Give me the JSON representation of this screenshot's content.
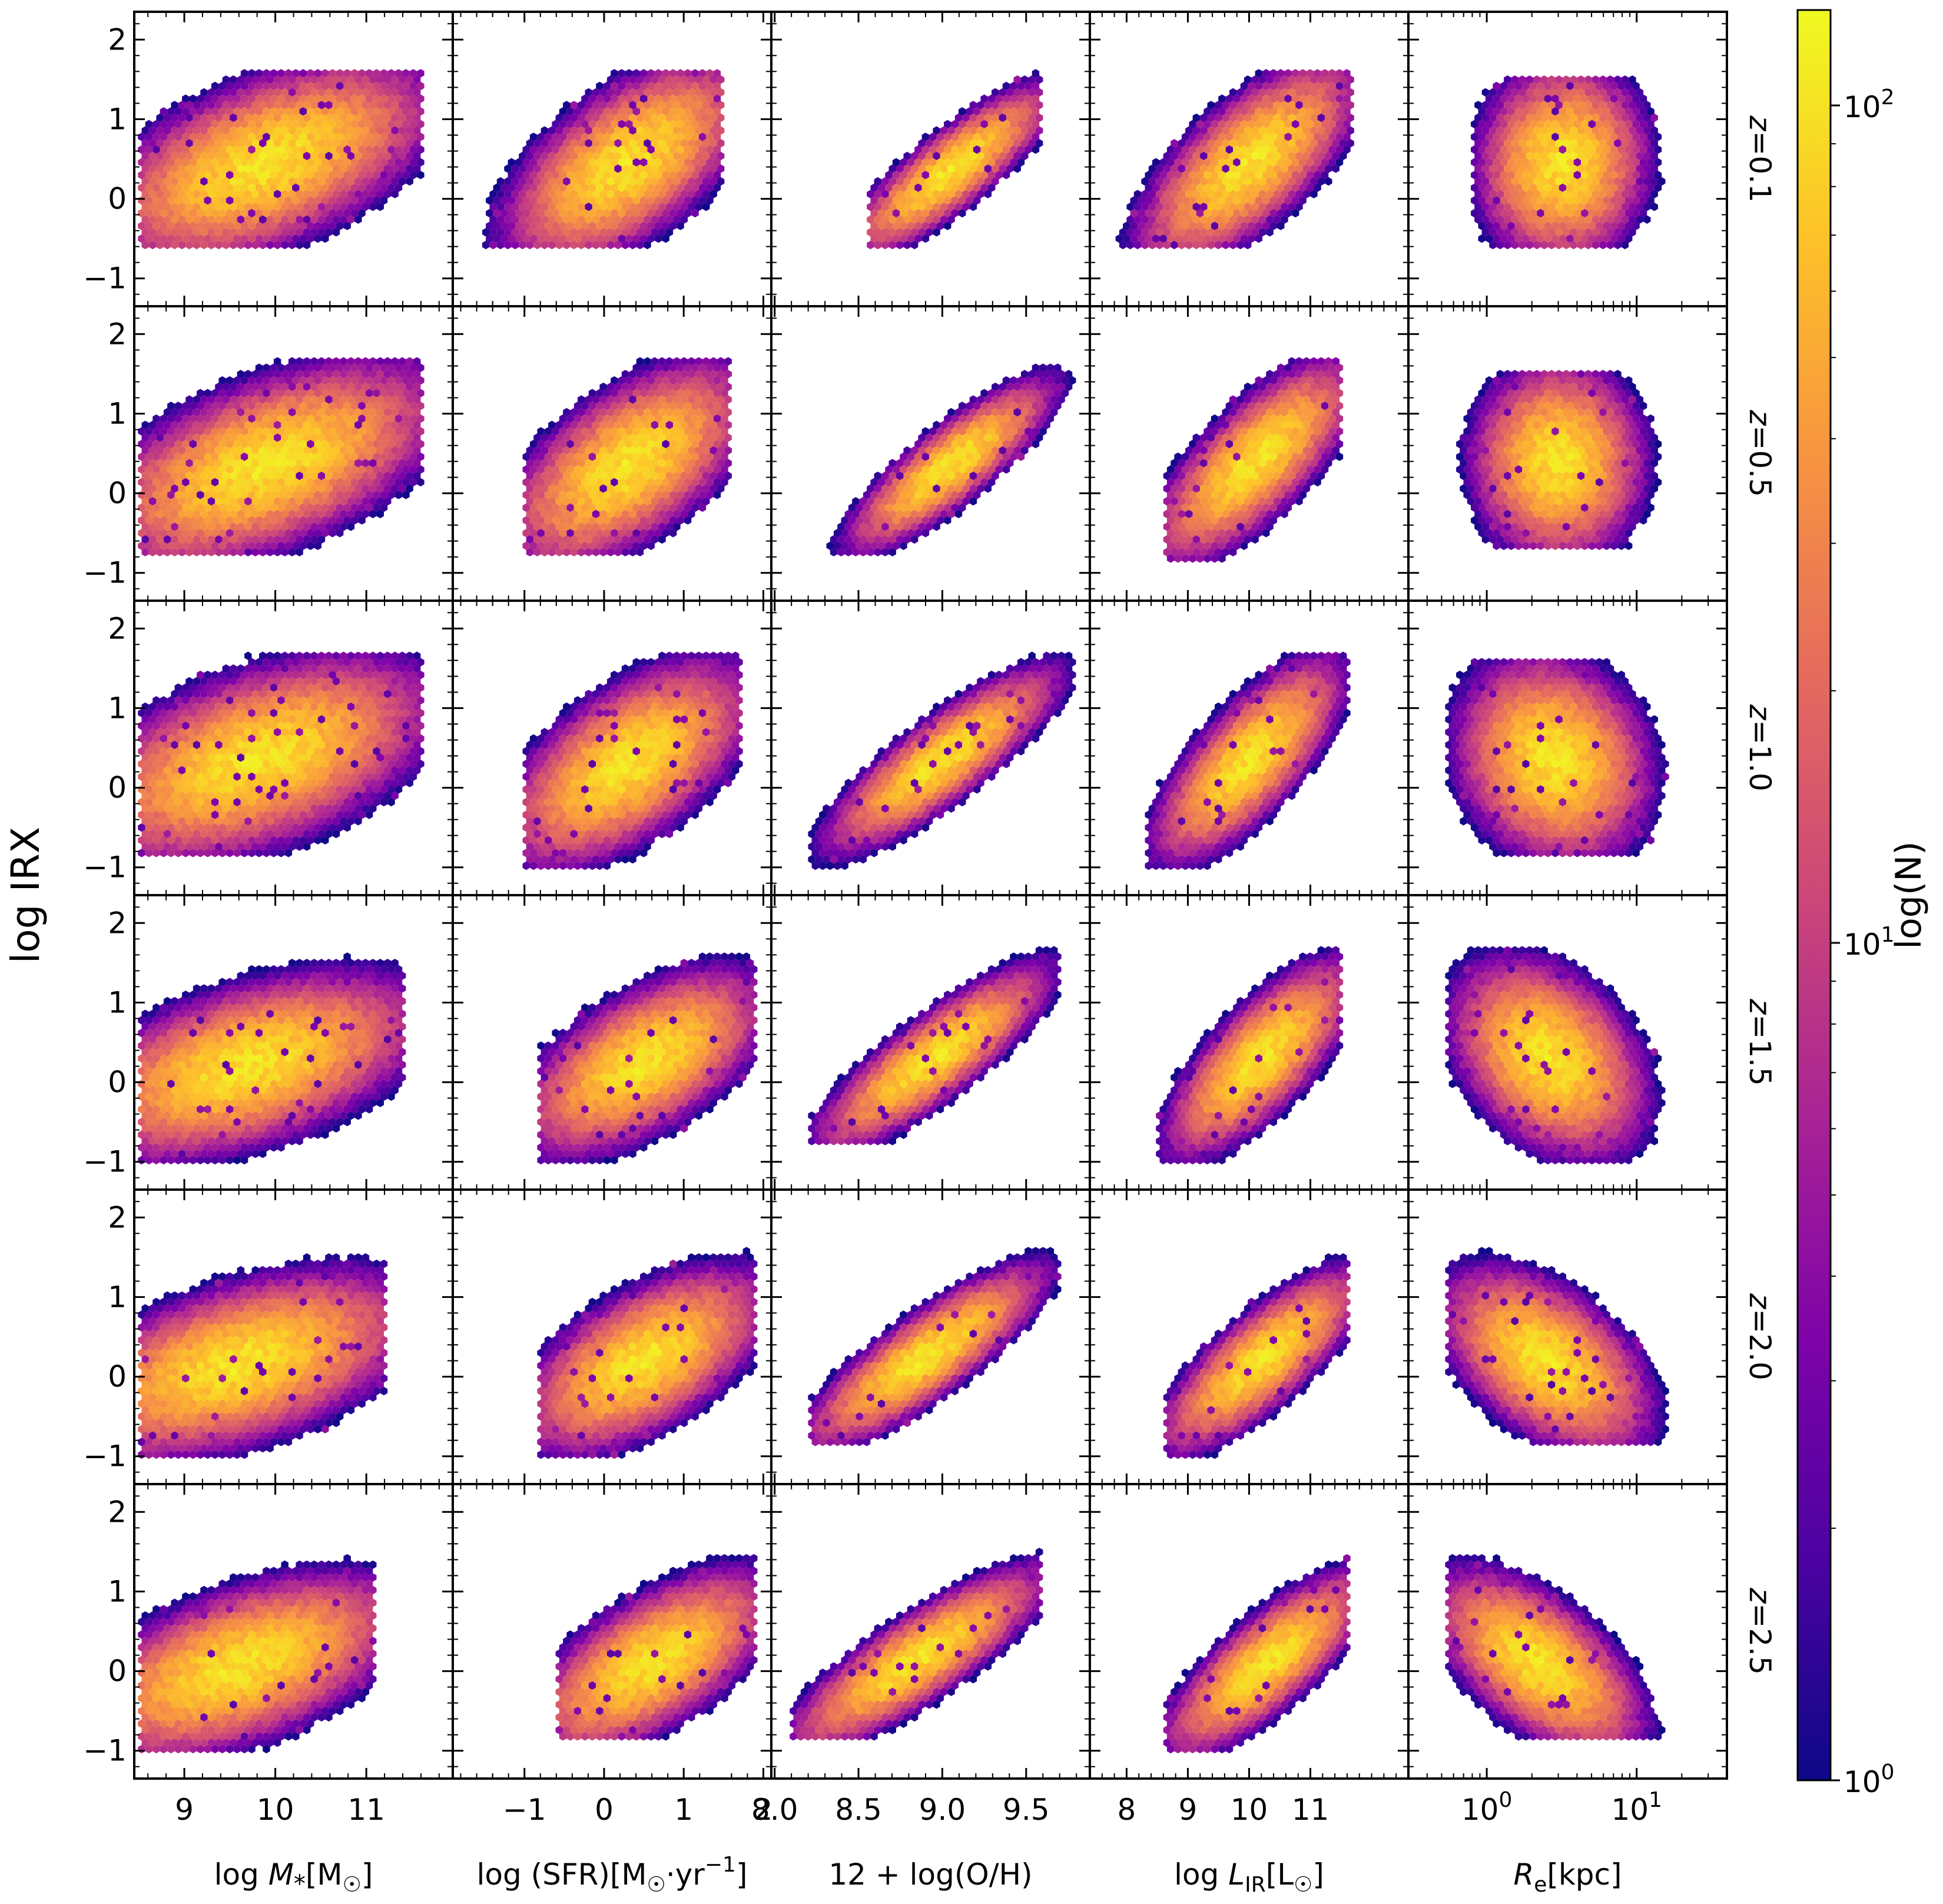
{
  "chart_data": {
    "type": "hexbin-grid",
    "ylabel": "log IRX",
    "ylim": [
      -1.35,
      2.35
    ],
    "yticks": [
      -1,
      0,
      1,
      2
    ],
    "ytick_labels": [
      "−1",
      "0",
      "1",
      "2"
    ],
    "colorbar": {
      "label": "log(N)",
      "scale": "log",
      "range": [
        1,
        130
      ],
      "ticks": [
        {
          "value": 1,
          "base": "10",
          "exp": "0"
        },
        {
          "value": 10,
          "base": "10",
          "exp": "1"
        },
        {
          "value": 100,
          "base": "10",
          "exp": "2"
        }
      ]
    },
    "rows": [
      {
        "label": "z=0.1",
        "z": 0.1
      },
      {
        "label": "z=0.5",
        "z": 0.5
      },
      {
        "label": "z=1.0",
        "z": 1.0
      },
      {
        "label": "z=1.5",
        "z": 1.5
      },
      {
        "label": "z=2.0",
        "z": 2.0
      },
      {
        "label": "z=2.5",
        "z": 2.5
      }
    ],
    "columns": [
      {
        "key": "mstar",
        "xlabel": "log M*[M☉]",
        "scale": "linear",
        "xlim": [
          8.45,
          11.95
        ],
        "ticks": [
          9,
          10,
          11
        ],
        "tick_labels": [
          "9",
          "10",
          "11"
        ]
      },
      {
        "key": "sfr",
        "xlabel": "log (SFR)[M☉·yr⁻¹]",
        "scale": "linear",
        "xlim": [
          -1.9,
          2.1
        ],
        "ticks": [
          -1,
          0,
          1,
          2
        ],
        "tick_labels": [
          "−1",
          "0",
          "1",
          "2"
        ]
      },
      {
        "key": "oh",
        "xlabel": "12 + log(O/H)",
        "scale": "linear",
        "xlim": [
          7.98,
          9.88
        ],
        "ticks": [
          8.0,
          8.5,
          9.0,
          9.5
        ],
        "tick_labels": [
          "8.0",
          "8.5",
          "9.0",
          "9.5"
        ]
      },
      {
        "key": "lir",
        "xlabel": "log L_IR[L☉]",
        "scale": "linear",
        "xlim": [
          7.4,
          12.6
        ],
        "ticks": [
          8,
          9,
          10,
          11
        ],
        "tick_labels": [
          "8",
          "9",
          "10",
          "11"
        ]
      },
      {
        "key": "re",
        "xlabel": "R_e[kpc]",
        "scale": "log",
        "xlim": [
          0.3,
          40
        ],
        "ticks": [
          1,
          10
        ],
        "tick_labels": [
          {
            "base": "10",
            "exp": "0"
          },
          {
            "base": "10",
            "exp": "1"
          }
        ]
      }
    ],
    "panels": [
      [
        {
          "xc": 9.9,
          "yc": 0.45,
          "sx": 0.72,
          "sy": 0.5,
          "rho": 0.55,
          "xr": [
            8.5,
            11.6
          ],
          "yr": [
            -0.6,
            1.6
          ]
        },
        {
          "xc": 0.3,
          "yc": 0.45,
          "sx": 0.6,
          "sy": 0.5,
          "rho": 0.6,
          "xr": [
            -1.5,
            1.5
          ],
          "yr": [
            -0.6,
            1.6
          ]
        },
        {
          "xc": 9.05,
          "yc": 0.35,
          "sx": 0.24,
          "sy": 0.42,
          "rho": 0.85,
          "xr": [
            8.55,
            9.6
          ],
          "yr": [
            -0.6,
            1.6
          ]
        },
        {
          "xc": 10.0,
          "yc": 0.45,
          "sx": 0.7,
          "sy": 0.5,
          "rho": 0.7,
          "xr": [
            7.6,
            11.7
          ],
          "yr": [
            -0.6,
            1.6
          ]
        },
        {
          "xc": 3.2,
          "yc": 0.45,
          "sx": 0.22,
          "sy": 0.48,
          "rho": 0.05,
          "xr": [
            0.8,
            22
          ],
          "yr": [
            -0.6,
            1.5
          ]
        }
      ],
      [
        {
          "xc": 9.9,
          "yc": 0.35,
          "sx": 0.75,
          "sy": 0.5,
          "rho": 0.55,
          "xr": [
            8.5,
            11.6
          ],
          "yr": [
            -0.8,
            1.7
          ]
        },
        {
          "xc": 0.3,
          "yc": 0.35,
          "sx": 0.6,
          "sy": 0.5,
          "rho": 0.6,
          "xr": [
            -1.0,
            1.6
          ],
          "yr": [
            -0.8,
            1.7
          ]
        },
        {
          "xc": 9.05,
          "yc": 0.35,
          "sx": 0.24,
          "sy": 0.42,
          "rho": 0.85,
          "xr": [
            8.3,
            9.8
          ],
          "yr": [
            -0.8,
            1.7
          ]
        },
        {
          "xc": 10.1,
          "yc": 0.4,
          "sx": 0.65,
          "sy": 0.5,
          "rho": 0.75,
          "xr": [
            8.6,
            11.5
          ],
          "yr": [
            -0.9,
            1.7
          ]
        },
        {
          "xc": 3.0,
          "yc": 0.4,
          "sx": 0.22,
          "sy": 0.48,
          "rho": 0.0,
          "xr": [
            0.6,
            18
          ],
          "yr": [
            -0.7,
            1.5
          ]
        }
      ],
      [
        {
          "xc": 9.8,
          "yc": 0.35,
          "sx": 0.75,
          "sy": 0.5,
          "rho": 0.5,
          "xr": [
            8.5,
            11.6
          ],
          "yr": [
            -0.9,
            1.7
          ]
        },
        {
          "xc": 0.3,
          "yc": 0.3,
          "sx": 0.6,
          "sy": 0.5,
          "rho": 0.6,
          "xr": [
            -1.0,
            1.7
          ],
          "yr": [
            -1.0,
            1.7
          ]
        },
        {
          "xc": 9.0,
          "yc": 0.35,
          "sx": 0.27,
          "sy": 0.45,
          "rho": 0.85,
          "xr": [
            8.2,
            9.8
          ],
          "yr": [
            -1.0,
            1.7
          ]
        },
        {
          "xc": 10.0,
          "yc": 0.35,
          "sx": 0.6,
          "sy": 0.5,
          "rho": 0.75,
          "xr": [
            8.3,
            11.6
          ],
          "yr": [
            -1.0,
            1.7
          ]
        },
        {
          "xc": 2.8,
          "yc": 0.35,
          "sx": 0.25,
          "sy": 0.5,
          "rho": -0.15,
          "xr": [
            0.55,
            18
          ],
          "yr": [
            -0.9,
            1.6
          ]
        }
      ],
      [
        {
          "xc": 9.7,
          "yc": 0.2,
          "sx": 0.75,
          "sy": 0.45,
          "rho": 0.5,
          "xr": [
            8.5,
            11.4
          ],
          "yr": [
            -1.0,
            1.7
          ]
        },
        {
          "xc": 0.5,
          "yc": 0.25,
          "sx": 0.6,
          "sy": 0.45,
          "rho": 0.6,
          "xr": [
            -0.8,
            1.9
          ],
          "yr": [
            -1.0,
            1.6
          ]
        },
        {
          "xc": 8.95,
          "yc": 0.3,
          "sx": 0.27,
          "sy": 0.45,
          "rho": 0.85,
          "xr": [
            8.2,
            9.7
          ],
          "yr": [
            -0.8,
            1.8
          ]
        },
        {
          "xc": 10.2,
          "yc": 0.3,
          "sx": 0.6,
          "sy": 0.48,
          "rho": 0.75,
          "xr": [
            8.5,
            11.5
          ],
          "yr": [
            -1.0,
            1.7
          ]
        },
        {
          "xc": 2.6,
          "yc": 0.3,
          "sx": 0.25,
          "sy": 0.48,
          "rho": -0.35,
          "xr": [
            0.55,
            15
          ],
          "yr": [
            -1.0,
            1.7
          ]
        }
      ],
      [
        {
          "xc": 9.6,
          "yc": 0.15,
          "sx": 0.75,
          "sy": 0.45,
          "rho": 0.5,
          "xr": [
            8.5,
            11.2
          ],
          "yr": [
            -1.0,
            1.6
          ]
        },
        {
          "xc": 0.5,
          "yc": 0.2,
          "sx": 0.6,
          "sy": 0.45,
          "rho": 0.6,
          "xr": [
            -0.8,
            1.9
          ],
          "yr": [
            -1.0,
            1.6
          ]
        },
        {
          "xc": 8.9,
          "yc": 0.25,
          "sx": 0.28,
          "sy": 0.45,
          "rho": 0.85,
          "xr": [
            8.2,
            9.7
          ],
          "yr": [
            -0.9,
            1.6
          ]
        },
        {
          "xc": 10.2,
          "yc": 0.2,
          "sx": 0.65,
          "sy": 0.45,
          "rho": 0.8,
          "xr": [
            8.6,
            11.6
          ],
          "yr": [
            -1.0,
            1.6
          ]
        },
        {
          "xc": 2.5,
          "yc": 0.2,
          "sx": 0.27,
          "sy": 0.45,
          "rho": -0.5,
          "xr": [
            0.55,
            16
          ],
          "yr": [
            -0.9,
            1.6
          ]
        }
      ],
      [
        {
          "xc": 9.6,
          "yc": 0.05,
          "sx": 0.7,
          "sy": 0.45,
          "rho": 0.55,
          "xr": [
            8.5,
            11.1
          ],
          "yr": [
            -1.0,
            1.7
          ]
        },
        {
          "xc": 0.6,
          "yc": 0.1,
          "sx": 0.6,
          "sy": 0.45,
          "rho": 0.65,
          "xr": [
            -0.6,
            1.9
          ],
          "yr": [
            -0.9,
            1.6
          ]
        },
        {
          "xc": 8.85,
          "yc": 0.15,
          "sx": 0.3,
          "sy": 0.45,
          "rho": 0.85,
          "xr": [
            8.1,
            9.6
          ],
          "yr": [
            -0.9,
            1.6
          ]
        },
        {
          "xc": 10.3,
          "yc": 0.1,
          "sx": 0.65,
          "sy": 0.45,
          "rho": 0.8,
          "xr": [
            8.6,
            11.6
          ],
          "yr": [
            -1.0,
            1.6
          ]
        },
        {
          "xc": 2.2,
          "yc": 0.1,
          "sx": 0.27,
          "sy": 0.45,
          "rho": -0.6,
          "xr": [
            0.55,
            15
          ],
          "yr": [
            -0.9,
            1.7
          ]
        }
      ]
    ]
  }
}
